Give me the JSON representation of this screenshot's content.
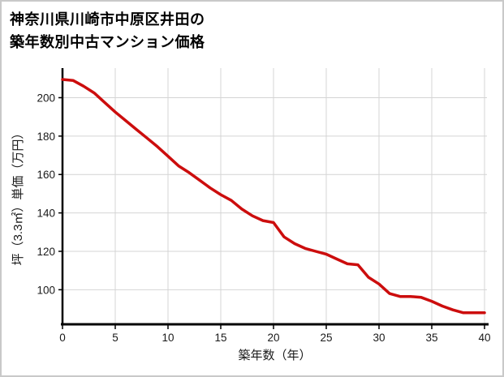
{
  "header": {
    "title_line1": "神奈川県川崎市中原区井田の",
    "title_line2": "築年数別中古マンション価格"
  },
  "chart_data": {
    "type": "line",
    "title": "神奈川県川崎市中原区井田の築年数別中古マンション価格",
    "xlabel": "築年数（年）",
    "ylabel": "坪（3.3㎡）単価（万円）",
    "x": [
      0,
      1,
      2,
      3,
      4,
      5,
      6,
      7,
      8,
      9,
      10,
      11,
      12,
      13,
      14,
      15,
      16,
      17,
      18,
      19,
      20,
      21,
      22,
      23,
      24,
      25,
      26,
      27,
      28,
      29,
      30,
      31,
      32,
      33,
      34,
      35,
      36,
      37,
      38,
      39,
      40
    ],
    "values": [
      209.5,
      209,
      206,
      202.5,
      197.5,
      192.5,
      188,
      183.5,
      179,
      174.5,
      169.5,
      164.5,
      161,
      157,
      153,
      149.5,
      146.5,
      142,
      138.5,
      136,
      135,
      127.5,
      124,
      121.5,
      120,
      118.5,
      116,
      113.5,
      113,
      106.5,
      103,
      98,
      96.5,
      96.5,
      96,
      94,
      91.5,
      89.5,
      88,
      88,
      88
    ],
    "x_ticks": [
      0,
      5,
      10,
      15,
      20,
      25,
      30,
      35,
      40
    ],
    "y_ticks": [
      100,
      120,
      140,
      160,
      180,
      200
    ],
    "xlim": [
      0,
      40
    ],
    "ylim": [
      82,
      215.4
    ],
    "grid": true,
    "legend": "none",
    "line_color": "#cc0d0d",
    "grid_color": "#d4d4d4",
    "axis_color": "#000000",
    "text_color": "#1a1a1a"
  }
}
